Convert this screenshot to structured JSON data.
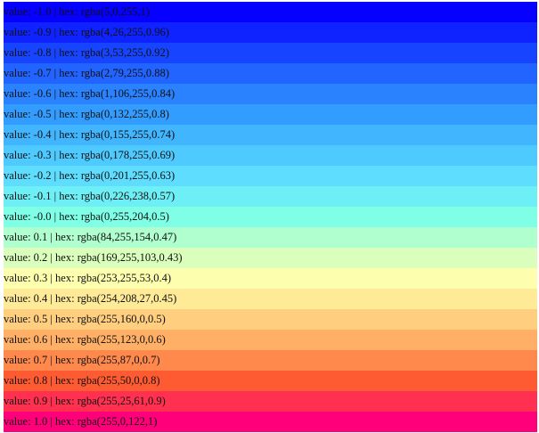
{
  "rows": [
    {
      "text": "value: -1.0 | hex: rgba(5,0,255,1)",
      "color": "rgba(5,0,255,1)"
    },
    {
      "text": "value: -0.9 | hex: rgba(4,26,255,0.96)",
      "color": "rgba(4,26,255,0.96)"
    },
    {
      "text": "value: -0.8 | hex: rgba(3,53,255,0.92)",
      "color": "rgba(3,53,255,0.92)"
    },
    {
      "text": "value: -0.7 | hex: rgba(2,79,255,0.88)",
      "color": "rgba(2,79,255,0.88)"
    },
    {
      "text": "value: -0.6 | hex: rgba(1,106,255,0.84)",
      "color": "rgba(1,106,255,0.84)"
    },
    {
      "text": "value: -0.5 | hex: rgba(0,132,255,0.8)",
      "color": "rgba(0,132,255,0.8)"
    },
    {
      "text": "value: -0.4 | hex: rgba(0,155,255,0.74)",
      "color": "rgba(0,155,255,0.74)"
    },
    {
      "text": "value: -0.3 | hex: rgba(0,178,255,0.69)",
      "color": "rgba(0,178,255,0.69)"
    },
    {
      "text": "value: -0.2 | hex: rgba(0,201,255,0.63)",
      "color": "rgba(0,201,255,0.63)"
    },
    {
      "text": "value: -0.1 | hex: rgba(0,226,238,0.57)",
      "color": "rgba(0,226,238,0.57)"
    },
    {
      "text": "value: -0.0 | hex: rgba(0,255,204,0.5)",
      "color": "rgba(0,255,204,0.5)"
    },
    {
      "text": "value: 0.1 | hex: rgba(84,255,154,0.47)",
      "color": "rgba(84,255,154,0.47)"
    },
    {
      "text": "value: 0.2 | hex: rgba(169,255,103,0.43)",
      "color": "rgba(169,255,103,0.43)"
    },
    {
      "text": "value: 0.3 | hex: rgba(253,255,53,0.4)",
      "color": "rgba(253,255,53,0.4)"
    },
    {
      "text": "value: 0.4 | hex: rgba(254,208,27,0.45)",
      "color": "rgba(254,208,27,0.45)"
    },
    {
      "text": "value: 0.5 | hex: rgba(255,160,0,0.5)",
      "color": "rgba(255,160,0,0.5)"
    },
    {
      "text": "value: 0.6 | hex: rgba(255,123,0,0.6)",
      "color": "rgba(255,123,0,0.6)"
    },
    {
      "text": "value: 0.7 | hex: rgba(255,87,0,0.7)",
      "color": "rgba(255,87,0,0.7)"
    },
    {
      "text": "value: 0.8 | hex: rgba(255,50,0,0.8)",
      "color": "rgba(255,50,0,0.8)"
    },
    {
      "text": "value: 0.9 | hex: rgba(255,25,61,0.9)",
      "color": "rgba(255,25,61,0.9)"
    },
    {
      "text": "value: 1.0 | hex: rgba(255,0,122,1)",
      "color": "rgba(255,0,122,1)"
    }
  ]
}
